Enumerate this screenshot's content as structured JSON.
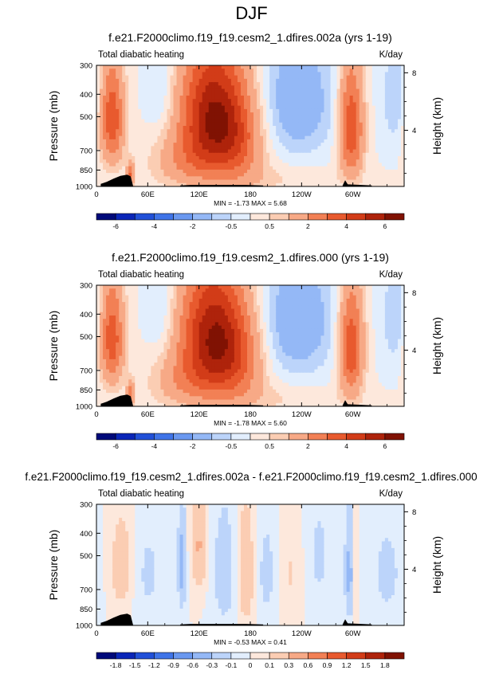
{
  "page_title": "DJF",
  "chart_data": [
    {
      "type": "heatmap",
      "title": "f.e21.F2000climo.f19_f19.cesm2_1.dfires.002a (yrs 1-19)",
      "subtitle_left": "Total diabatic heating",
      "subtitle_right": "K/day",
      "ylabel": "Pressure (mb)",
      "ylabel_right": "Height (km)",
      "x_ticks": [
        "0",
        "60E",
        "120E",
        "180",
        "120W",
        "60W"
      ],
      "y_ticks": [
        "300",
        "400",
        "500",
        "700",
        "850",
        "1000"
      ],
      "y_right_ticks": [
        "8",
        "4"
      ],
      "minmax_text": "MIN = -1.73  MAX =  5.68",
      "min": -1.73,
      "max": 5.68,
      "colorbar": {
        "levels": [
          -6,
          -5,
          -4,
          -3,
          -2,
          -1,
          -0.5,
          0,
          0.5,
          1,
          2,
          3,
          4,
          5,
          6
        ],
        "labels": [
          "-6",
          "-4",
          "-2",
          "-0.5",
          "0.5",
          "2",
          "4",
          "6"
        ],
        "colors": [
          "#000a7a",
          "#0a26b8",
          "#2150d8",
          "#3f74e8",
          "#6a98f0",
          "#94b8f6",
          "#bcd4fa",
          "#e2eefd",
          "#fde8dc",
          "#fbcdb3",
          "#f7a986",
          "#f28055",
          "#e85a2e",
          "#d23c18",
          "#ae230b",
          "#801203"
        ]
      },
      "anomalies": [
        {
          "x": 18,
          "p": 510,
          "amp": 3.8,
          "sx": 10,
          "sp": 185
        },
        {
          "x": 40,
          "p": 880,
          "amp": 3.0,
          "sx": 3,
          "sp": 70
        },
        {
          "x": 135,
          "p": 480,
          "amp": 5.5,
          "sx": 26,
          "sp": 210
        },
        {
          "x": 110,
          "p": 780,
          "amp": 1.8,
          "sx": 30,
          "sp": 150
        },
        {
          "x": 165,
          "p": 650,
          "amp": 2.4,
          "sx": 22,
          "sp": 210
        },
        {
          "x": 235,
          "p": 430,
          "amp": -1.7,
          "sx": 30,
          "sp": 190
        },
        {
          "x": 298,
          "p": 560,
          "amp": 4.0,
          "sx": 10,
          "sp": 220
        },
        {
          "x": 350,
          "p": 420,
          "amp": -0.9,
          "sx": 12,
          "sp": 160
        },
        {
          "x": 75,
          "p": 380,
          "amp": -0.7,
          "sx": 12,
          "sp": 150
        },
        {
          "x": 200,
          "p": 930,
          "amp": 0.5,
          "sx": 60,
          "sp": 90
        }
      ],
      "terrain": [
        {
          "lon": 5,
          "p": 975
        },
        {
          "lon": 12,
          "p": 955
        },
        {
          "lon": 20,
          "p": 925
        },
        {
          "lon": 28,
          "p": 900
        },
        {
          "lon": 36,
          "p": 890
        },
        {
          "lon": 40,
          "p": 905
        },
        {
          "lon": 43,
          "p": 1000
        },
        {
          "lon": 98,
          "p": 990
        },
        {
          "lon": 110,
          "p": 985
        },
        {
          "lon": 130,
          "p": 985
        },
        {
          "lon": 150,
          "p": 985
        },
        {
          "lon": 175,
          "p": 985
        },
        {
          "lon": 195,
          "p": 990
        },
        {
          "lon": 288,
          "p": 990
        },
        {
          "lon": 291,
          "p": 940
        },
        {
          "lon": 294,
          "p": 980
        },
        {
          "lon": 310,
          "p": 985
        },
        {
          "lon": 322,
          "p": 990
        }
      ]
    },
    {
      "type": "heatmap",
      "title": "f.e21.F2000climo.f19_f19.cesm2_1.dfires.000 (yrs 1-19)",
      "subtitle_left": "Total diabatic heating",
      "subtitle_right": "K/day",
      "ylabel": "Pressure (mb)",
      "ylabel_right": "Height (km)",
      "x_ticks": [
        "0",
        "60E",
        "120E",
        "180",
        "120W",
        "60W"
      ],
      "y_ticks": [
        "300",
        "400",
        "500",
        "700",
        "850",
        "1000"
      ],
      "y_right_ticks": [
        "8",
        "4"
      ],
      "minmax_text": "MIN = -1.78  MAX =  5.60",
      "min": -1.78,
      "max": 5.6,
      "colorbar": {
        "levels": [
          -6,
          -5,
          -4,
          -3,
          -2,
          -1,
          -0.5,
          0,
          0.5,
          1,
          2,
          3,
          4,
          5,
          6
        ],
        "labels": [
          "-6",
          "-4",
          "-2",
          "-0.5",
          "0.5",
          "2",
          "4",
          "6"
        ],
        "colors": [
          "#000a7a",
          "#0a26b8",
          "#2150d8",
          "#3f74e8",
          "#6a98f0",
          "#94b8f6",
          "#bcd4fa",
          "#e2eefd",
          "#fde8dc",
          "#fbcdb3",
          "#f7a986",
          "#f28055",
          "#e85a2e",
          "#d23c18",
          "#ae230b",
          "#801203"
        ]
      },
      "anomalies": [
        {
          "x": 18,
          "p": 510,
          "amp": 3.7,
          "sx": 10,
          "sp": 185
        },
        {
          "x": 40,
          "p": 880,
          "amp": 2.8,
          "sx": 3,
          "sp": 70
        },
        {
          "x": 135,
          "p": 480,
          "amp": 5.4,
          "sx": 26,
          "sp": 210
        },
        {
          "x": 110,
          "p": 780,
          "amp": 1.8,
          "sx": 30,
          "sp": 150
        },
        {
          "x": 165,
          "p": 650,
          "amp": 2.3,
          "sx": 22,
          "sp": 210
        },
        {
          "x": 235,
          "p": 430,
          "amp": -1.75,
          "sx": 30,
          "sp": 190
        },
        {
          "x": 298,
          "p": 560,
          "amp": 3.9,
          "sx": 10,
          "sp": 220
        },
        {
          "x": 350,
          "p": 420,
          "amp": -0.9,
          "sx": 12,
          "sp": 160
        },
        {
          "x": 75,
          "p": 380,
          "amp": -0.7,
          "sx": 12,
          "sp": 150
        },
        {
          "x": 200,
          "p": 930,
          "amp": 0.5,
          "sx": 60,
          "sp": 90
        }
      ],
      "terrain": [
        {
          "lon": 5,
          "p": 975
        },
        {
          "lon": 12,
          "p": 955
        },
        {
          "lon": 20,
          "p": 925
        },
        {
          "lon": 28,
          "p": 900
        },
        {
          "lon": 36,
          "p": 890
        },
        {
          "lon": 40,
          "p": 905
        },
        {
          "lon": 43,
          "p": 1000
        },
        {
          "lon": 98,
          "p": 990
        },
        {
          "lon": 110,
          "p": 985
        },
        {
          "lon": 130,
          "p": 985
        },
        {
          "lon": 150,
          "p": 985
        },
        {
          "lon": 175,
          "p": 985
        },
        {
          "lon": 195,
          "p": 990
        },
        {
          "lon": 288,
          "p": 990
        },
        {
          "lon": 291,
          "p": 940
        },
        {
          "lon": 294,
          "p": 980
        },
        {
          "lon": 310,
          "p": 985
        },
        {
          "lon": 322,
          "p": 990
        }
      ]
    },
    {
      "type": "heatmap",
      "title": "f.e21.F2000climo.f19_f19.cesm2_1.dfires.002a - f.e21.F2000climo.f19_f19.cesm2_1.dfires.000",
      "subtitle_left": "Total diabatic heating",
      "subtitle_right": "K/day",
      "ylabel": "Pressure (mb)",
      "ylabel_right": "Height (km)",
      "x_ticks": [
        "0",
        "60E",
        "120E",
        "180",
        "120W",
        "60W"
      ],
      "y_ticks": [
        "300",
        "400",
        "500",
        "700",
        "850",
        "1000"
      ],
      "y_right_ticks": [
        "8",
        "4"
      ],
      "minmax_text": "MIN = -0.53  MAX =  0.41",
      "min": -0.53,
      "max": 0.41,
      "colorbar": {
        "levels": [
          -1.8,
          -1.5,
          -1.2,
          -0.9,
          -0.6,
          -0.3,
          -0.1,
          0,
          0.1,
          0.3,
          0.6,
          0.9,
          1.2,
          1.5,
          1.8
        ],
        "labels": [
          "-1.8",
          "-1.5",
          "-1.2",
          "-0.9",
          "-0.6",
          "-0.3",
          "-0.1",
          "0",
          "0.1",
          "0.3",
          "0.6",
          "0.9",
          "1.2",
          "1.5",
          "1.8"
        ],
        "colors": [
          "#000a7a",
          "#0a26b8",
          "#2150d8",
          "#3f74e8",
          "#6a98f0",
          "#94b8f6",
          "#bcd4fa",
          "#e2eefd",
          "#fde8dc",
          "#fbcdb3",
          "#f7a986",
          "#f28055",
          "#e85a2e",
          "#d23c18",
          "#ae230b",
          "#801203"
        ]
      },
      "anomalies": [
        {
          "x": 30,
          "p": 560,
          "amp": 0.2,
          "sx": 10,
          "sp": 200
        },
        {
          "x": 60,
          "p": 600,
          "amp": -0.12,
          "sx": 15,
          "sp": 250
        },
        {
          "x": 100,
          "p": 550,
          "amp": -0.42,
          "sx": 3,
          "sp": 180
        },
        {
          "x": 120,
          "p": 450,
          "amp": 0.32,
          "sx": 6,
          "sp": 150
        },
        {
          "x": 150,
          "p": 600,
          "amp": -0.2,
          "sx": 10,
          "sp": 250
        },
        {
          "x": 175,
          "p": 600,
          "amp": 0.25,
          "sx": 8,
          "sp": 250
        },
        {
          "x": 200,
          "p": 600,
          "amp": -0.15,
          "sx": 12,
          "sp": 250
        },
        {
          "x": 225,
          "p": 600,
          "amp": 0.12,
          "sx": 12,
          "sp": 250
        },
        {
          "x": 260,
          "p": 500,
          "amp": -0.12,
          "sx": 12,
          "sp": 250
        },
        {
          "x": 297,
          "p": 600,
          "amp": -0.45,
          "sx": 4,
          "sp": 200
        },
        {
          "x": 302,
          "p": 600,
          "amp": 0.3,
          "sx": 3,
          "sp": 200
        },
        {
          "x": 340,
          "p": 600,
          "amp": -0.13,
          "sx": 15,
          "sp": 250
        }
      ],
      "terrain": [
        {
          "lon": 5,
          "p": 975
        },
        {
          "lon": 12,
          "p": 955
        },
        {
          "lon": 20,
          "p": 925
        },
        {
          "lon": 28,
          "p": 900
        },
        {
          "lon": 36,
          "p": 890
        },
        {
          "lon": 40,
          "p": 905
        },
        {
          "lon": 43,
          "p": 1000
        },
        {
          "lon": 98,
          "p": 990
        },
        {
          "lon": 110,
          "p": 985
        },
        {
          "lon": 130,
          "p": 985
        },
        {
          "lon": 150,
          "p": 985
        },
        {
          "lon": 175,
          "p": 985
        },
        {
          "lon": 195,
          "p": 990
        },
        {
          "lon": 288,
          "p": 990
        },
        {
          "lon": 291,
          "p": 940
        },
        {
          "lon": 294,
          "p": 980
        },
        {
          "lon": 310,
          "p": 985
        },
        {
          "lon": 322,
          "p": 990
        }
      ]
    }
  ]
}
